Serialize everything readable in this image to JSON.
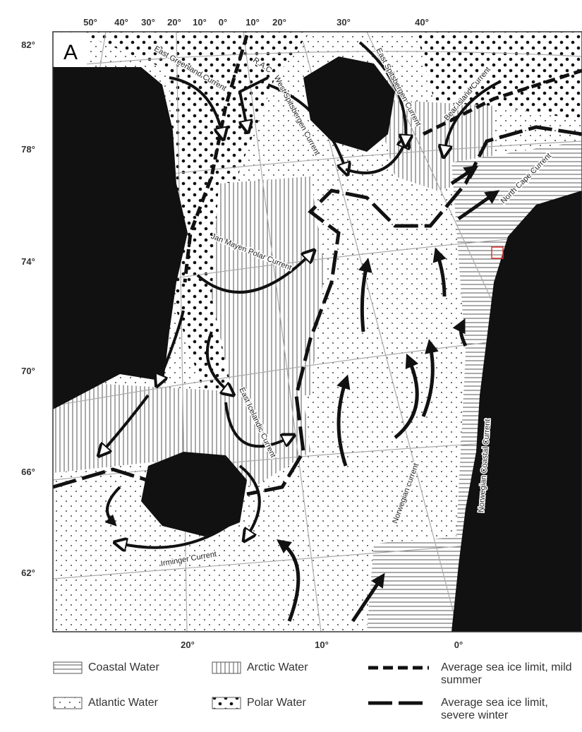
{
  "panel_label": "A",
  "top_longitudes": [
    "50°",
    "40°",
    "30°",
    "20°",
    "10°",
    "0°",
    "10°",
    "20°",
    "30°",
    "40°"
  ],
  "latitudes": [
    "82°",
    "78°",
    "74°",
    "70°",
    "66°",
    "62°"
  ],
  "bottom_longitudes": [
    "20°",
    "10°",
    "0°"
  ],
  "currents": [
    "East Greenland Current",
    "R.A.C",
    "West Spitsbergen Current",
    "East Spitsbergen Current",
    "Bear Island Current",
    "North Cape Current",
    "Jan Mayen Polar Current",
    "East Icelandic Current",
    "Norwegian current",
    "Norwegian Coastal Current",
    "Irminger Current"
  ],
  "legend": [
    {
      "label": "Coastal Water"
    },
    {
      "label": "Arctic Water"
    },
    {
      "label": "Average sea ice limit, mild summer"
    },
    {
      "label": "Atlantic Water"
    },
    {
      "label": "Polar Water"
    },
    {
      "label": "Average sea ice limit, severe winter"
    }
  ]
}
